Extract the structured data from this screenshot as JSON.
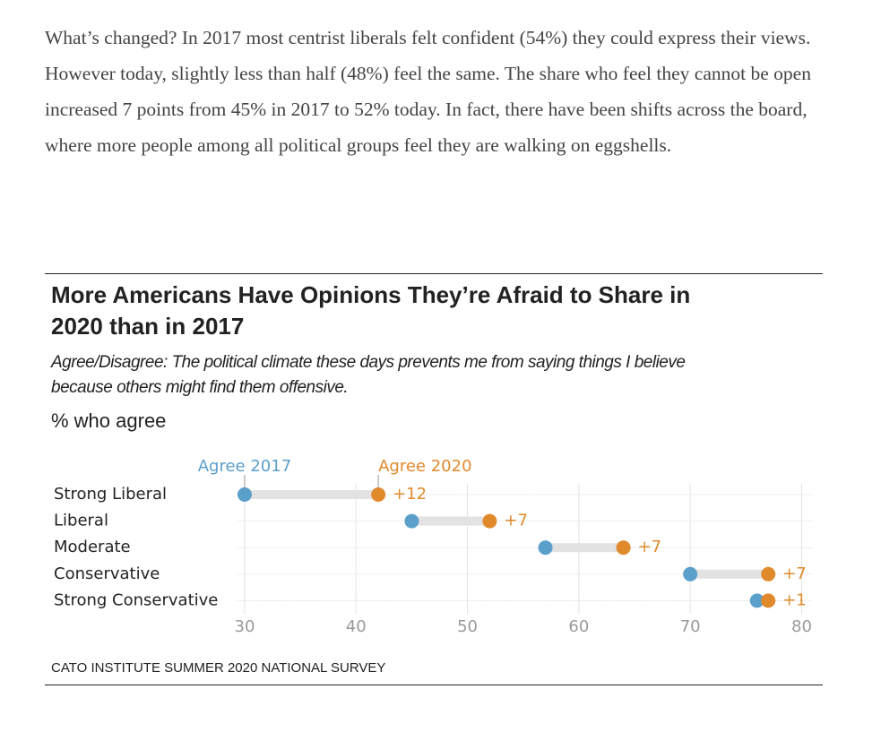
{
  "article": {
    "paragraph": "What’s changed? In 2017 most centrist liberals felt confident (54%) they could express their views. However today, slightly less than half (48%) feel the same. The share who feel they cannot be open increased 7 points from 45% in 2017 to 52% today. In fact, there have been shifts across the board, where more people among all political groups feel they are walking on eggshells."
  },
  "chart_data": {
    "type": "dumbbell",
    "title": "More Americans Have Opinions They’re Afraid to Share in 2020 than in 2017",
    "subtitle": "Agree/Disagree: The political climate these days prevents me from saying things I believe because others might find them offensive.",
    "xlabel": "% who agree",
    "source": "CATO INSTITUTE SUMMER 2020 NATIONAL SURVEY",
    "categories": [
      "Strong Liberal",
      "Liberal",
      "Moderate",
      "Conservative",
      "Strong Conservative"
    ],
    "series": [
      {
        "name": "Agree 2017",
        "color": "#5b9fcb",
        "values": [
          30,
          45,
          57,
          70,
          76
        ]
      },
      {
        "name": "Agree 2020",
        "color": "#e08a2c",
        "values": [
          42,
          52,
          64,
          77,
          77
        ]
      }
    ],
    "change": {
      "values": [
        12,
        7,
        7,
        7,
        1
      ],
      "value_labels": [
        "+12",
        "+7",
        "+7",
        "+7",
        "+1"
      ]
    },
    "xlim": [
      29.4,
      81
    ],
    "xticks": [
      30,
      40,
      50,
      60,
      70,
      80
    ],
    "grid": true
  }
}
